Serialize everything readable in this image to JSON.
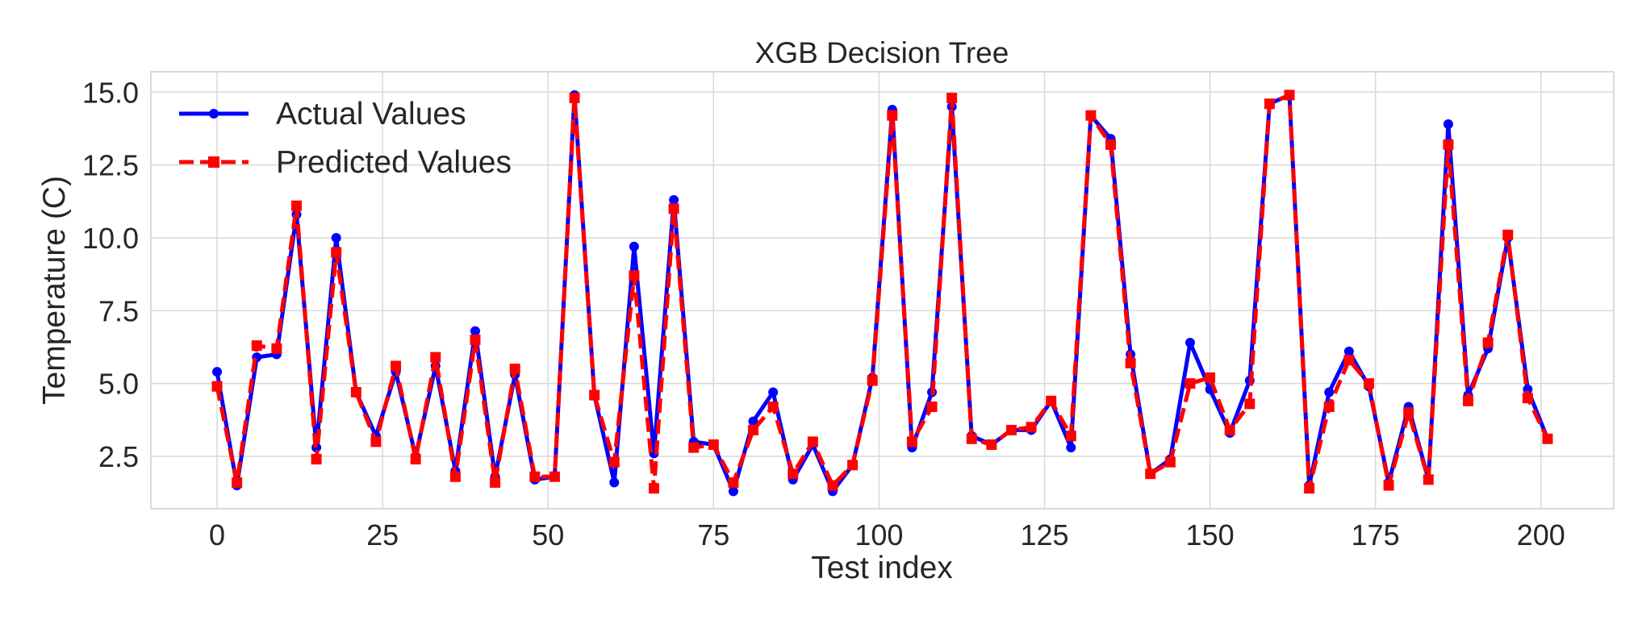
{
  "chart_data": {
    "type": "line",
    "title": "XGB Decision Tree",
    "xlabel": "Test index",
    "ylabel": "Temperature (C)",
    "xlim": [
      -10,
      211
    ],
    "ylim": [
      0.7,
      15.7
    ],
    "xticks": [
      0,
      25,
      50,
      75,
      100,
      125,
      150,
      175,
      200
    ],
    "yticks": [
      2.5,
      5.0,
      7.5,
      10.0,
      12.5,
      15.0
    ],
    "ytick_labels": [
      "2.5",
      "5.0",
      "7.5",
      "10.0",
      "12.5",
      "15.0"
    ],
    "grid": true,
    "legend_position": "top-left",
    "x": [
      0,
      3,
      6,
      9,
      12,
      15,
      18,
      21,
      24,
      27,
      30,
      33,
      36,
      39,
      42,
      45,
      48,
      51,
      54,
      57,
      60,
      63,
      66,
      69,
      72,
      75,
      78,
      81,
      84,
      87,
      90,
      93,
      96,
      99,
      102,
      105,
      108,
      111,
      114,
      117,
      120,
      123,
      126,
      129,
      132,
      135,
      138,
      141,
      144,
      147,
      150,
      153,
      156,
      159,
      162,
      165,
      168,
      171,
      174,
      177,
      180,
      183,
      186,
      189,
      192,
      195,
      198,
      201
    ],
    "series": [
      {
        "name": "Actual Values",
        "color": "#0000ff",
        "style": "solid",
        "marker": "circle",
        "values": [
          5.4,
          1.5,
          5.9,
          6.0,
          10.8,
          2.8,
          10.0,
          4.7,
          3.2,
          5.4,
          2.5,
          5.6,
          2.0,
          6.8,
          1.8,
          5.3,
          1.7,
          1.8,
          14.9,
          4.6,
          1.6,
          9.7,
          2.6,
          11.3,
          3.0,
          2.9,
          1.3,
          3.7,
          4.7,
          1.7,
          2.9,
          1.3,
          2.2,
          5.2,
          14.4,
          2.8,
          4.7,
          14.5,
          3.2,
          2.9,
          3.4,
          3.4,
          4.4,
          2.8,
          14.2,
          13.4,
          6.0,
          1.9,
          2.4,
          6.4,
          4.8,
          3.3,
          5.1,
          14.6,
          14.9,
          1.5,
          4.7,
          6.1,
          4.9,
          1.6,
          4.2,
          1.7,
          13.9,
          4.6,
          6.2,
          10.0,
          4.8,
          3.1
        ]
      },
      {
        "name": "Predicted Values",
        "color": "#ff0000",
        "style": "dashed",
        "marker": "square",
        "values": [
          4.9,
          1.6,
          6.3,
          6.2,
          11.1,
          2.4,
          9.5,
          4.7,
          3.0,
          5.6,
          2.4,
          5.9,
          1.8,
          6.5,
          1.6,
          5.5,
          1.8,
          1.8,
          14.8,
          4.6,
          2.3,
          8.7,
          1.4,
          11.0,
          2.8,
          2.9,
          1.6,
          3.4,
          4.2,
          1.9,
          3.0,
          1.5,
          2.2,
          5.1,
          14.2,
          3.0,
          4.2,
          14.8,
          3.1,
          2.9,
          3.4,
          3.5,
          4.4,
          3.2,
          14.2,
          13.2,
          5.7,
          1.9,
          2.3,
          5.0,
          5.2,
          3.4,
          4.3,
          14.6,
          14.9,
          1.4,
          4.2,
          5.8,
          5.0,
          1.5,
          4.0,
          1.7,
          13.2,
          4.4,
          6.4,
          10.1,
          4.5,
          3.1
        ]
      }
    ]
  }
}
